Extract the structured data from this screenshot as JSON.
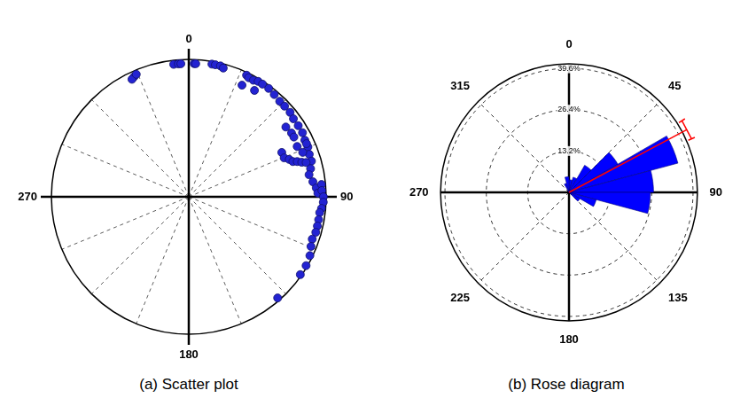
{
  "chart_data": [
    {
      "type": "scatter",
      "title": "(a) Scatter plot",
      "x": [
        335.5,
        334.2,
        336.8,
        353.5,
        355.5,
        356.6,
        2.3,
        3.0,
        9.9,
        11.4,
        13.6,
        15.0,
        25.4,
        26.7,
        29.0,
        31.0,
        25.5,
        31.7,
        33.2,
        36.4,
        39.9,
        43.6,
        46.6,
        50.2,
        53.3,
        57.0,
        60.6,
        64.0,
        67.3,
        70.6,
        73.8,
        54.3,
        58.2,
        60.4,
        65.1,
        68.7,
        65.7,
        64.5,
        67.8,
        69.6,
        71.3,
        72.0,
        73.0,
        73.7,
        77.0,
        79.6,
        83.1,
        86.0,
        88.4,
        84.7,
        87.3,
        90.0,
        92.3,
        95.0,
        96.9,
        100.0,
        102.8,
        105.6,
        108.9,
        112.1,
        115.9,
        120.4,
        124.9,
        138.7
      ],
      "values": [
        0.96,
        0.95,
        0.97,
        0.97,
        0.97,
        0.97,
        0.97,
        0.97,
        0.98,
        0.98,
        0.98,
        0.97,
        0.98,
        0.97,
        0.97,
        0.98,
        0.9,
        0.91,
        0.98,
        0.98,
        0.97,
        0.96,
        0.96,
        0.96,
        0.95,
        0.95,
        0.95,
        0.94,
        0.94,
        0.93,
        0.93,
        0.87,
        0.88,
        0.88,
        0.87,
        0.89,
        0.94,
        0.75,
        0.75,
        0.78,
        0.8,
        0.83,
        0.86,
        0.89,
        0.91,
        0.89,
        0.91,
        0.93,
        0.94,
        0.97,
        0.97,
        0.98,
        0.98,
        0.97,
        0.96,
        0.96,
        0.96,
        0.96,
        0.95,
        0.96,
        0.98,
        0.99,
        0.99,
        0.98
      ],
      "color": "#2323d2",
      "marker": "circle",
      "xlim": [
        0,
        360
      ],
      "xticks": [
        0,
        90,
        180,
        270
      ],
      "ylim": [
        0,
        1
      ],
      "tick_labels": "x",
      "grid": true
    },
    {
      "type": "rose",
      "title": "(b) Rose diagram",
      "bins": [
        0,
        15,
        30,
        45,
        60,
        75,
        90,
        105,
        120,
        135,
        150,
        165,
        180,
        195,
        210,
        225,
        240,
        255,
        270,
        285,
        300,
        315,
        330,
        345,
        360
      ],
      "values": [
        4,
        5,
        10,
        18,
        36,
        27,
        26,
        9,
        4,
        0,
        0,
        0,
        0,
        0,
        0,
        0,
        0,
        0,
        0,
        0,
        0,
        0,
        3,
        5
      ],
      "color": "#0000ff",
      "xlim": [
        0,
        360
      ],
      "xticks": [
        0,
        45,
        90,
        135,
        180,
        225,
        270,
        315
      ],
      "ylim": [
        0,
        41
      ],
      "yticks": [
        {
          "value": 13.2,
          "label": "13.2%"
        },
        {
          "value": 26.4,
          "label": "26.4%"
        },
        {
          "value": 39.6,
          "label": "39.6%"
        }
      ],
      "grid": true,
      "mean": {
        "value": 62,
        "interval": [
          57.6,
          66.4
        ],
        "color": "#ff0000"
      }
    }
  ]
}
